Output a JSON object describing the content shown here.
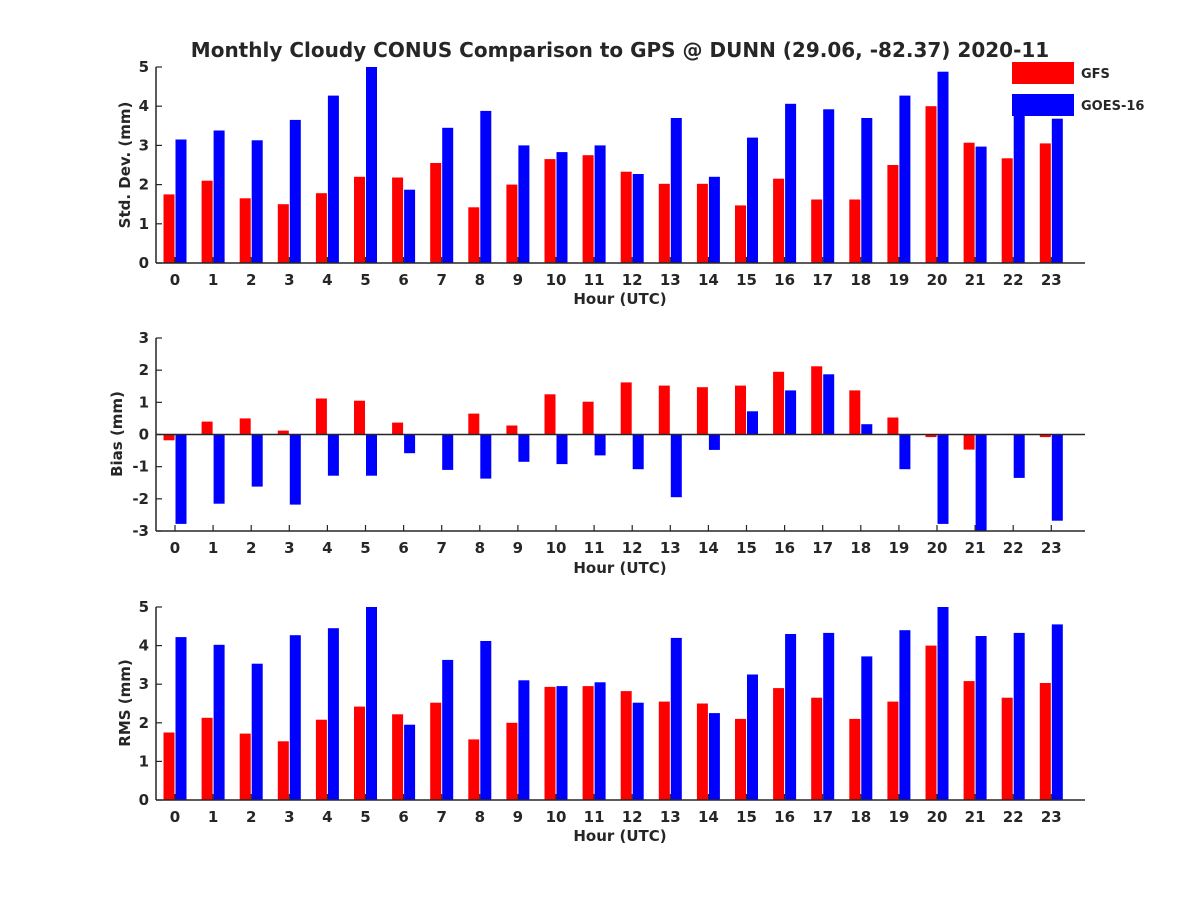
{
  "chart_data": [
    {
      "type": "bar",
      "title": "Monthly Cloudy CONUS Comparison to GPS @ DUNN (29.06, -82.37) 2020-11",
      "xlabel": "Hour (UTC)",
      "ylabel": "Std. Dev. (mm)",
      "ylim": [
        0,
        5
      ],
      "yticks": [
        "0",
        "1",
        "2",
        "3",
        "4",
        "5"
      ],
      "categories": [
        "0",
        "1",
        "2",
        "3",
        "4",
        "5",
        "6",
        "7",
        "8",
        "9",
        "10",
        "11",
        "12",
        "13",
        "14",
        "15",
        "16",
        "17",
        "18",
        "19",
        "20",
        "21",
        "22",
        "23"
      ],
      "series": [
        {
          "name": "GFS",
          "color": "#ff0000",
          "values": [
            1.75,
            2.1,
            1.65,
            1.5,
            1.78,
            2.2,
            2.18,
            2.55,
            1.42,
            2.0,
            2.65,
            2.75,
            2.33,
            2.02,
            2.02,
            1.47,
            2.15,
            1.62,
            1.62,
            2.5,
            4.0,
            3.07,
            2.67,
            3.05
          ]
        },
        {
          "name": "GOES-16",
          "color": "#0000ff",
          "values": [
            3.15,
            3.38,
            3.13,
            3.65,
            4.27,
            5.0,
            1.87,
            3.45,
            3.88,
            3.0,
            2.83,
            3.0,
            2.27,
            3.7,
            2.2,
            3.2,
            4.06,
            3.92,
            3.7,
            4.27,
            4.88,
            2.97,
            4.1,
            3.68
          ]
        }
      ],
      "legend": {
        "position": "top-right",
        "entries": [
          "GFS",
          "GOES-16"
        ]
      },
      "grid": false
    },
    {
      "type": "bar",
      "xlabel": "Hour (UTC)",
      "ylabel": "Bias (mm)",
      "ylim": [
        -3,
        3
      ],
      "yticks": [
        "-3",
        "-2",
        "-1",
        "0",
        "1",
        "2",
        "3"
      ],
      "categories": [
        "0",
        "1",
        "2",
        "3",
        "4",
        "5",
        "6",
        "7",
        "8",
        "9",
        "10",
        "11",
        "12",
        "13",
        "14",
        "15",
        "16",
        "17",
        "18",
        "19",
        "20",
        "21",
        "22",
        "23"
      ],
      "series": [
        {
          "name": "GFS",
          "color": "#ff0000",
          "values": [
            -0.18,
            0.4,
            0.5,
            0.12,
            1.12,
            1.05,
            0.37,
            -0.02,
            0.65,
            0.28,
            1.25,
            1.02,
            1.62,
            1.52,
            1.47,
            1.52,
            1.95,
            2.12,
            1.37,
            0.53,
            -0.08,
            -0.47,
            0.02,
            -0.08
          ]
        },
        {
          "name": "GOES-16",
          "color": "#0000ff",
          "values": [
            -2.78,
            -2.15,
            -1.62,
            -2.18,
            -1.28,
            -1.28,
            -0.58,
            -1.1,
            -1.37,
            -0.85,
            -0.92,
            -0.65,
            -1.08,
            -1.95,
            -0.48,
            0.72,
            1.37,
            1.87,
            0.32,
            -1.08,
            -2.78,
            -3.0,
            -1.35,
            -2.68
          ]
        }
      ],
      "grid": false
    },
    {
      "type": "bar",
      "xlabel": "Hour (UTC)",
      "ylabel": "RMS (mm)",
      "ylim": [
        0,
        5
      ],
      "yticks": [
        "0",
        "1",
        "2",
        "3",
        "4",
        "5"
      ],
      "categories": [
        "0",
        "1",
        "2",
        "3",
        "4",
        "5",
        "6",
        "7",
        "8",
        "9",
        "10",
        "11",
        "12",
        "13",
        "14",
        "15",
        "16",
        "17",
        "18",
        "19",
        "20",
        "21",
        "22",
        "23"
      ],
      "series": [
        {
          "name": "GFS",
          "color": "#ff0000",
          "values": [
            1.75,
            2.13,
            1.72,
            1.52,
            2.08,
            2.42,
            2.22,
            2.52,
            1.57,
            2.0,
            2.93,
            2.95,
            2.82,
            2.55,
            2.5,
            2.1,
            2.9,
            2.65,
            2.1,
            2.55,
            4.0,
            3.08,
            2.65,
            3.03
          ]
        },
        {
          "name": "GOES-16",
          "color": "#0000ff",
          "values": [
            4.22,
            4.02,
            3.53,
            4.27,
            4.45,
            5.0,
            1.95,
            3.63,
            4.12,
            3.1,
            2.95,
            3.05,
            2.52,
            4.2,
            2.25,
            3.25,
            4.3,
            4.33,
            3.72,
            4.4,
            5.0,
            4.25,
            4.33,
            4.55
          ]
        }
      ],
      "grid": false
    }
  ]
}
